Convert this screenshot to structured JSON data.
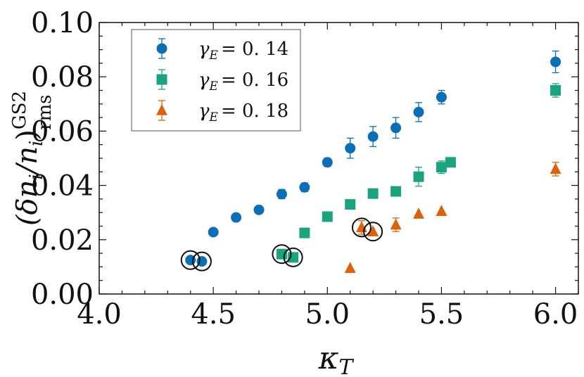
{
  "chart_data": {
    "type": "scatter",
    "title": "",
    "xlabel": "κ",
    "xlabel_sub": "T",
    "ylabel_main": "(δn",
    "ylabel_sub1": "i",
    "ylabel_mid": "/n",
    "ylabel_sub2": "i",
    "ylabel_close": ")",
    "ylabel_sup": "GS2",
    "ylabel_sub": "rms",
    "xlim": [
      4.0,
      6.1
    ],
    "ylim": [
      0.0,
      0.1
    ],
    "xticks": [
      "4.0",
      "4.5",
      "5.0",
      "5.5",
      "6.0"
    ],
    "xtick_values": [
      4.0,
      4.5,
      5.0,
      5.5,
      6.0
    ],
    "yticks": [
      "0.00",
      "0.02",
      "0.04",
      "0.06",
      "0.08",
      "0.10"
    ],
    "ytick_values": [
      0.0,
      0.02,
      0.04,
      0.06,
      0.08,
      0.1
    ],
    "legend_position": "top-left",
    "series": [
      {
        "name": "γE = 0.14",
        "label_main": "γ",
        "label_sub": "E",
        "label_value": "= 0. 14",
        "marker": "circle",
        "color": "#0c6eb4",
        "x": [
          4.4,
          4.45,
          4.5,
          4.6,
          4.7,
          4.8,
          4.9,
          5.0,
          5.1,
          5.2,
          5.3,
          5.4,
          5.5,
          6.0
        ],
        "y": [
          0.0125,
          0.012,
          0.0228,
          0.0282,
          0.031,
          0.0368,
          0.0393,
          0.0485,
          0.0537,
          0.058,
          0.0612,
          0.067,
          0.0725,
          0.0855
        ],
        "err": [
          0.0,
          0.0,
          0.0,
          0.0,
          0.0013,
          0.0017,
          0.0016,
          0.0015,
          0.0037,
          0.0037,
          0.0038,
          0.0035,
          0.0025,
          0.004
        ]
      },
      {
        "name": "γE = 0.16",
        "label_main": "γ",
        "label_sub": "E",
        "label_value": "= 0. 16",
        "marker": "square",
        "color": "#1aa37e",
        "x": [
          4.8,
          4.85,
          4.9,
          5.0,
          5.1,
          5.2,
          5.3,
          5.4,
          5.5,
          5.54,
          6.0
        ],
        "y": [
          0.0147,
          0.0135,
          0.0225,
          0.0285,
          0.033,
          0.037,
          0.0378,
          0.0432,
          0.0467,
          0.0485,
          0.075
        ],
        "err": [
          0.0,
          0.0,
          0.0,
          0.0013,
          0.0017,
          0.0017,
          0.0015,
          0.0035,
          0.0023,
          0.0,
          0.0025
        ]
      },
      {
        "name": "γE = 0.18",
        "label_main": "γ",
        "label_sub": "E",
        "label_value": "= 0. 18",
        "marker": "triangle",
        "color": "#d9620b",
        "x": [
          5.1,
          5.15,
          5.2,
          5.3,
          5.4,
          5.5,
          6.0
        ],
        "y": [
          0.0095,
          0.0245,
          0.023,
          0.0255,
          0.0295,
          0.0305,
          0.046
        ],
        "err": [
          0.0,
          0.0025,
          0.0,
          0.0025,
          0.0,
          0.0,
          0.0025
        ]
      }
    ],
    "highlights": [
      {
        "x": 4.4,
        "y": 0.0125
      },
      {
        "x": 4.45,
        "y": 0.012
      },
      {
        "x": 4.8,
        "y": 0.0147
      },
      {
        "x": 4.85,
        "y": 0.0135
      },
      {
        "x": 5.15,
        "y": 0.0245
      },
      {
        "x": 5.2,
        "y": 0.023
      }
    ]
  }
}
